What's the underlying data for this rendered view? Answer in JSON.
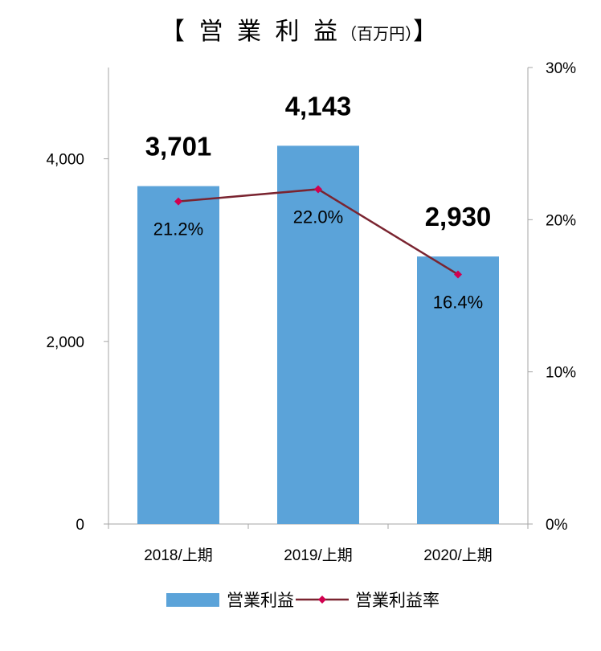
{
  "chart_data": {
    "type": "bar",
    "title": "【 営 業 利 益",
    "title_unit": "（百万円）",
    "title_close": "】",
    "categories": [
      "2018/上期",
      "2019/上期",
      "2020/上期"
    ],
    "series": [
      {
        "name": "営業利益",
        "type": "bar",
        "axis": "left",
        "values": [
          3701,
          4143,
          2930
        ],
        "labels": [
          "3,701",
          "4,143",
          "2,930"
        ],
        "color": "#5ba3d9"
      },
      {
        "name": "営業利益率",
        "type": "line",
        "axis": "right",
        "values": [
          21.2,
          22.0,
          16.4
        ],
        "labels": [
          "21.2%",
          "22.0%",
          "16.4%"
        ],
        "color": "#7a2430",
        "marker_color": "#d1004f"
      }
    ],
    "y_left": {
      "ylim": [
        0,
        5000
      ],
      "ticks": [
        0,
        2000,
        4000
      ],
      "tick_labels": [
        "0",
        "2,000",
        "4,000"
      ]
    },
    "y_right": {
      "ylim": [
        0,
        30
      ],
      "ticks": [
        0,
        10,
        20,
        30
      ],
      "tick_labels": [
        "0%",
        "10%",
        "20%",
        "30%"
      ]
    },
    "grid": false,
    "legend_position": "bottom"
  }
}
